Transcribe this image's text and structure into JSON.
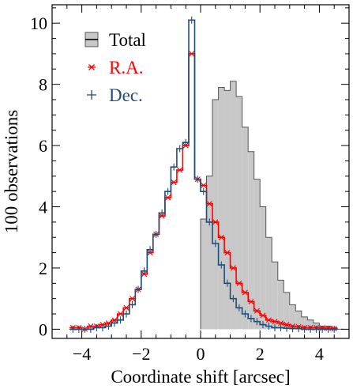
{
  "chart_data": {
    "type": "histogram",
    "xlabel": "Coordinate shift  [arcsec]",
    "ylabel": "100  observations",
    "xlim": [
      -5,
      5
    ],
    "ylim": [
      -0.3,
      10.6
    ],
    "xticks": [
      -4,
      -2,
      0,
      2,
      4
    ],
    "xtick_labels": [
      "−4",
      "−2",
      "0",
      "2",
      "4"
    ],
    "yticks": [
      0,
      2,
      4,
      6,
      8,
      10
    ],
    "ytick_labels": [
      "0",
      "2",
      "4",
      "6",
      "8",
      "10"
    ],
    "bin_width": 0.2,
    "grid": false,
    "legend_position": "top-left",
    "series": [
      {
        "name": "Total",
        "style": "filled-step",
        "color": "#c8c8c8",
        "edge": "#555555",
        "x_start": 0.0,
        "values": [
          3.6,
          5.0,
          7.5,
          7.9,
          7.8,
          8.1,
          7.6,
          6.6,
          5.8,
          4.9,
          4.0,
          3.0,
          2.2,
          1.6,
          1.2,
          0.8,
          0.6,
          0.4,
          0.3,
          0.2,
          0.1,
          0.1,
          0.05,
          0.0
        ]
      },
      {
        "name": "R.A.",
        "style": "step-with-markers",
        "color": "#ff0000",
        "x_start": -4.4,
        "values": [
          0.05,
          0.05,
          0.0,
          0.1,
          0.1,
          0.15,
          0.2,
          0.3,
          0.5,
          0.7,
          1.0,
          1.3,
          1.8,
          2.5,
          3.1,
          3.7,
          4.3,
          4.8,
          5.2,
          6.0,
          9.0,
          4.9,
          4.7,
          4.1,
          3.5,
          3.0,
          2.5,
          2.0,
          1.5,
          1.2,
          0.9,
          0.6,
          0.45,
          0.3,
          0.25,
          0.2,
          0.15,
          0.1,
          0.08,
          0.05,
          0.05,
          0.05,
          0.04,
          0.03,
          0.02
        ]
      },
      {
        "name": "Dec.",
        "style": "step-with-markers",
        "color": "#1f4e79",
        "x_start": -4.4,
        "values": [
          0.0,
          0.0,
          0.0,
          0.0,
          0.05,
          0.05,
          0.1,
          0.2,
          0.3,
          0.5,
          0.8,
          1.3,
          1.9,
          2.6,
          3.1,
          3.8,
          4.5,
          5.3,
          5.9,
          6.1,
          10.1,
          4.9,
          4.5,
          3.5,
          2.8,
          2.1,
          1.5,
          1.0,
          0.7,
          0.5,
          0.35,
          0.25,
          0.15,
          0.1,
          0.05,
          0.05,
          0.03,
          0.02,
          0.02,
          0.0,
          0.0,
          0.0,
          0.0,
          0.0,
          0.0
        ]
      }
    ]
  }
}
